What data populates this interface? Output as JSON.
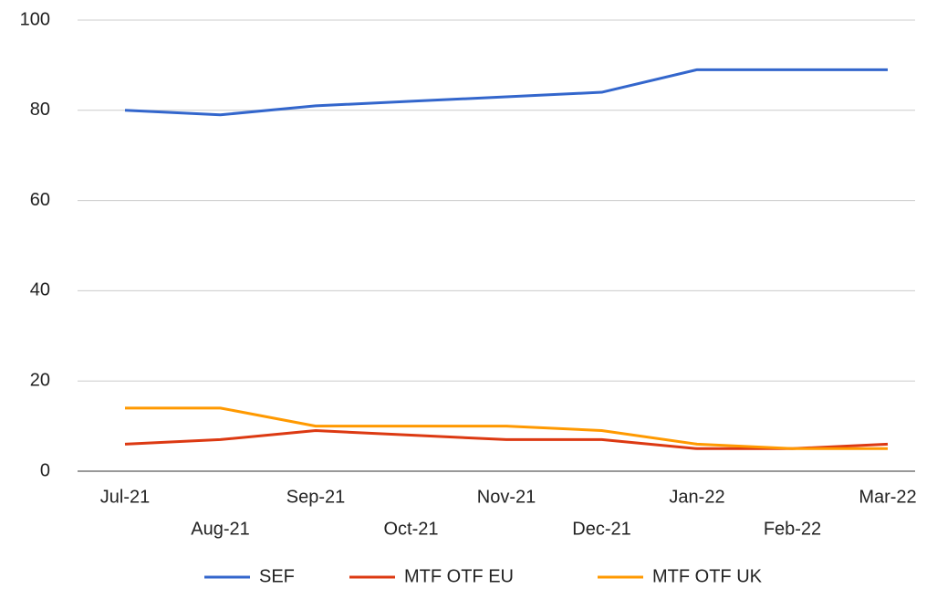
{
  "chart_data": {
    "type": "line",
    "categories": [
      "Jul-21",
      "Aug-21",
      "Sep-21",
      "Oct-21",
      "Nov-21",
      "Dec-21",
      "Jan-22",
      "Feb-22",
      "Mar-22"
    ],
    "series": [
      {
        "name": "SEF",
        "color": "#3366cc",
        "values": [
          80,
          79,
          81,
          82,
          83,
          84,
          89,
          89,
          89
        ]
      },
      {
        "name": "MTF OTF EU",
        "color": "#dc3912",
        "values": [
          6,
          7,
          9,
          8,
          7,
          7,
          5,
          5,
          6
        ]
      },
      {
        "name": "MTF OTF UK",
        "color": "#ff9900",
        "values": [
          14,
          14,
          10,
          10,
          10,
          9,
          6,
          5,
          5
        ]
      }
    ],
    "ylim": [
      0,
      100
    ],
    "yticks": [
      0,
      20,
      40,
      60,
      80,
      100
    ],
    "grid": true,
    "legend": "bottom"
  }
}
